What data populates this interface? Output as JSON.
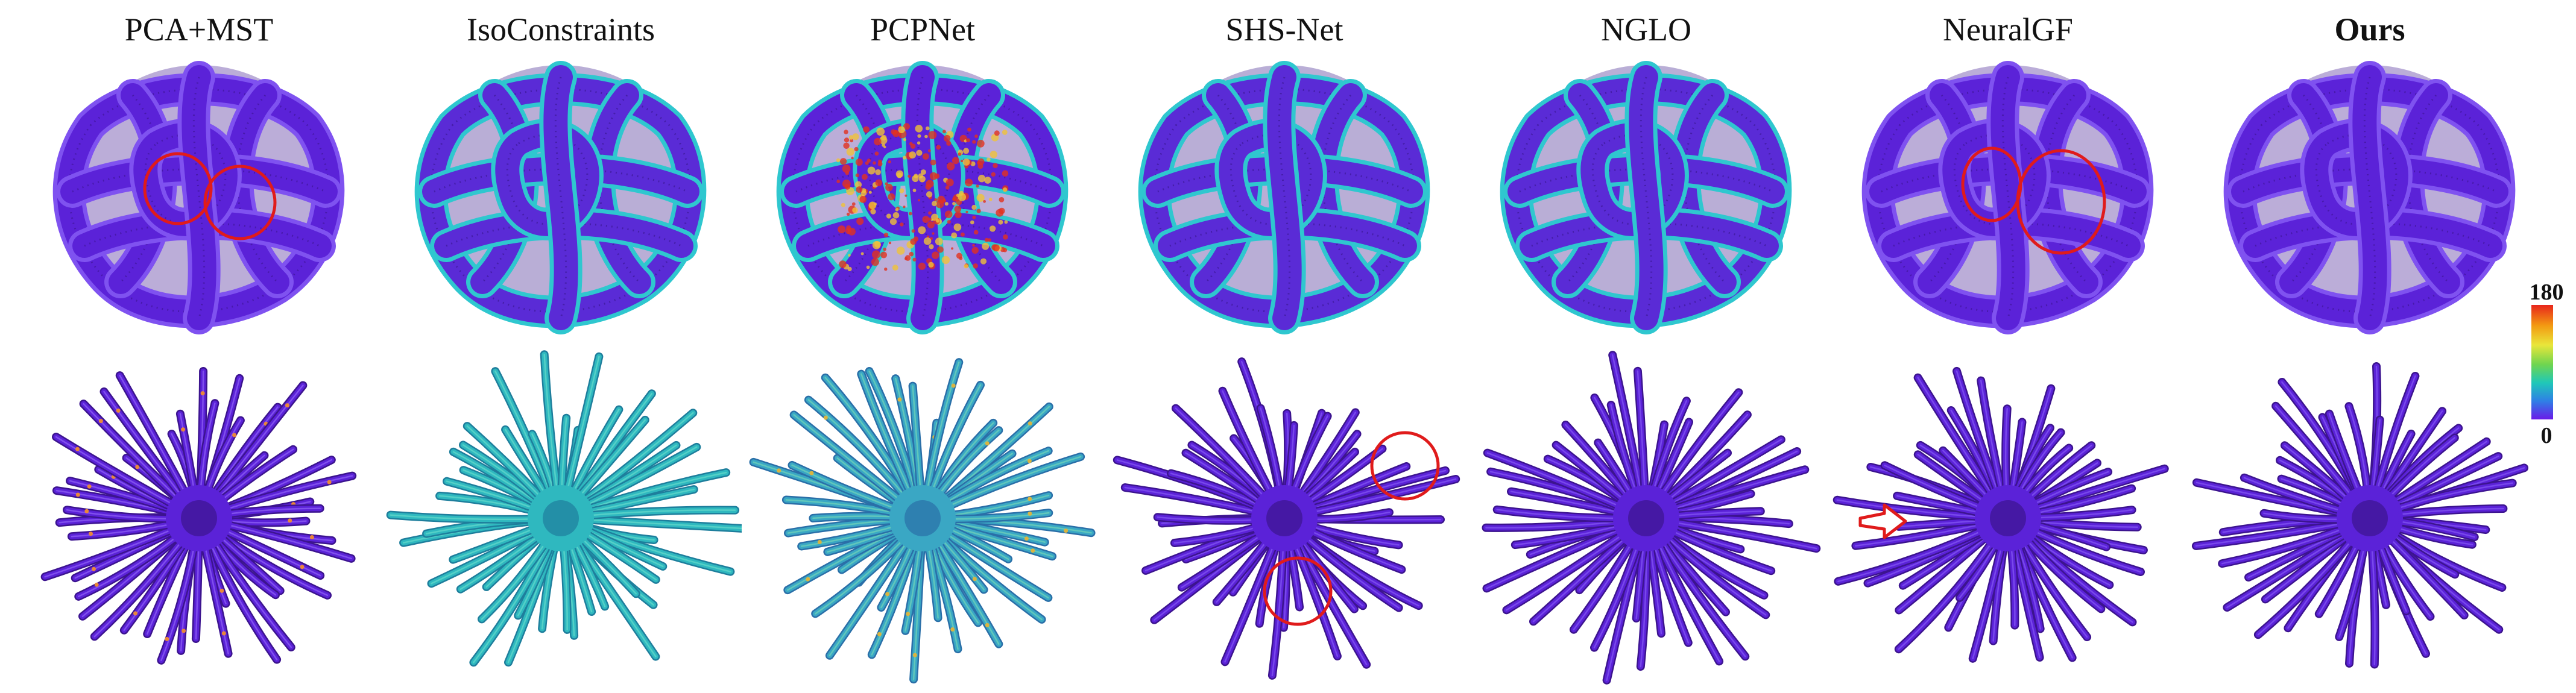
{
  "methods": [
    {
      "name": "PCA+MST",
      "bold": false,
      "knot_scheme": "purple",
      "star_scheme": "purple-speckled",
      "knot_circles": 2,
      "star_circles": 0,
      "star_arrow": false
    },
    {
      "name": "IsoConstraints",
      "bold": false,
      "knot_scheme": "cyan-edges",
      "star_scheme": "teal",
      "knot_circles": 0,
      "star_circles": 0,
      "star_arrow": false
    },
    {
      "name": "PCPNet",
      "bold": false,
      "knot_scheme": "red-noisy",
      "star_scheme": "teal-speckled",
      "knot_circles": 0,
      "star_circles": 0,
      "star_arrow": false
    },
    {
      "name": "SHS-Net",
      "bold": false,
      "knot_scheme": "cyan-edges",
      "star_scheme": "purple",
      "knot_circles": 0,
      "star_circles": 2,
      "star_arrow": false
    },
    {
      "name": "NGLO",
      "bold": false,
      "knot_scheme": "cyan-edges",
      "star_scheme": "purple",
      "knot_circles": 0,
      "star_circles": 0,
      "star_arrow": false
    },
    {
      "name": "NeuralGF",
      "bold": false,
      "knot_scheme": "purple",
      "star_scheme": "purple",
      "knot_circles": 2,
      "star_circles": 0,
      "star_arrow": true
    },
    {
      "name": "Ours",
      "bold": true,
      "knot_scheme": "purple",
      "star_scheme": "purple",
      "knot_circles": 0,
      "star_circles": 0,
      "star_arrow": false
    }
  ],
  "colorbar": {
    "max_label": "180",
    "min_label": "0",
    "colors": [
      "#e8261c",
      "#f39a12",
      "#e9e63a",
      "#6fd54f",
      "#1fc8b8",
      "#2f7fe6",
      "#6a1ae8"
    ]
  },
  "annotation_color": "#e01b1b"
}
